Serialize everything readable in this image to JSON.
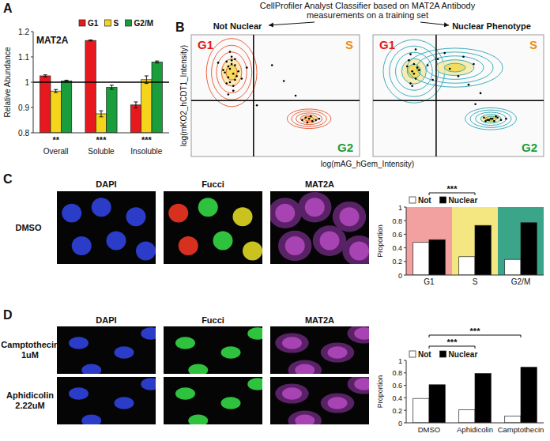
{
  "panel_labels": [
    "A",
    "B",
    "C",
    "D"
  ],
  "panel_b_title": [
    "CellProfiler Analyst Classifier based on MAT2A Antibody",
    "measurements on a training set"
  ],
  "images": {
    "columns": [
      "DAPI",
      "Fucci",
      "MAT2A"
    ],
    "rows_c": [
      "DMSO"
    ],
    "rows_d": [
      [
        "Camptothecin",
        "1uM"
      ],
      [
        "Aphidicolin",
        "2.22uM"
      ]
    ]
  },
  "chart_data": [
    {
      "type": "bar",
      "title": "MAT2A",
      "y_label": "Relative Abundance",
      "categories": [
        "Overall",
        "Soluble",
        "Insoluble"
      ],
      "significance": [
        "**",
        "***",
        "***"
      ],
      "series": [
        {
          "name": "G1",
          "color": "#e8191e",
          "values": [
            1.025,
            1.165,
            0.91
          ],
          "errors": [
            0.004,
            0.002,
            0.012
          ]
        },
        {
          "name": "S",
          "color": "#f5d51c",
          "values": [
            0.965,
            0.875,
            1.01
          ],
          "errors": [
            0.006,
            0.012,
            0.015
          ]
        },
        {
          "name": "G2/M",
          "color": "#1a9e3c",
          "values": [
            1.005,
            0.98,
            1.08
          ],
          "errors": [
            0.003,
            0.008,
            0.004
          ]
        }
      ],
      "ylim": [
        0.8,
        1.2
      ],
      "yticks": [
        0.8,
        0.9,
        1,
        1.1,
        1.2
      ],
      "reference_line": 1,
      "legend": "top"
    },
    {
      "type": "scatter",
      "title": "Not Nuclear",
      "x_label": "log(mAG_hGem_Intensity)",
      "y_label": "log(mKO2_hCDT1_Intensity)",
      "color": "#e8502a",
      "tick_labels": false,
      "xlim": [
        0,
        10
      ],
      "ylim": [
        0,
        10
      ],
      "thresholds": {
        "x": 3.7,
        "y": 4.6
      },
      "annotations": [
        "G1",
        "S",
        "G2"
      ],
      "contours": [
        {
          "cx": 2.4,
          "cy": 6.9,
          "rx": 1.5,
          "ry": 2.8
        },
        {
          "cx": 7.0,
          "cy": 3.1,
          "rx": 1.3,
          "ry": 0.8
        }
      ],
      "x": [
        2.1,
        2.3,
        2.5,
        2.2,
        2.6,
        2.4,
        2.0,
        2.8,
        2.3,
        2.5,
        2.7,
        2.2,
        2.4,
        2.6,
        1.9,
        2.3,
        2.5,
        2.1,
        3.0,
        2.4,
        2.6,
        2.2,
        3.3,
        4.8,
        5.5,
        6.2,
        6.6,
        6.8,
        7.0,
        7.2,
        7.4,
        7.1,
        6.9,
        7.6,
        3.9,
        1.6
      ],
      "values": [
        7.8,
        7.2,
        6.8,
        6.5,
        7.5,
        8.2,
        6.9,
        7.0,
        6.1,
        5.8,
        6.6,
        7.4,
        7.9,
        6.3,
        7.1,
        8.6,
        5.4,
        6.0,
        6.4,
        7.6,
        8.0,
        5.1,
        7.3,
        7.5,
        6.2,
        5.0,
        3.0,
        3.2,
        3.1,
        2.9,
        3.0,
        3.3,
        2.8,
        3.1,
        4.2,
        7.7
      ]
    },
    {
      "type": "scatter",
      "title": "Nuclear Phenotype",
      "color": "#2ba5b5",
      "tick_labels": false,
      "xlim": [
        0,
        10
      ],
      "ylim": [
        0,
        10
      ],
      "thresholds": {
        "x": 3.7,
        "y": 4.6
      },
      "annotations": [
        "G1",
        "S",
        "G2"
      ],
      "contours": [
        {
          "cx": 2.4,
          "cy": 7.0,
          "rx": 1.8,
          "ry": 2.6
        },
        {
          "cx": 6.9,
          "cy": 3.1,
          "rx": 1.5,
          "ry": 0.9
        },
        {
          "cx": 4.8,
          "cy": 7.3,
          "rx": 2.8,
          "ry": 1.6
        }
      ],
      "x": [
        2.2,
        2.4,
        2.3,
        2.5,
        2.1,
        2.6,
        2.3,
        2.4,
        2.2,
        2.7,
        2.5,
        3.2,
        3.8,
        4.5,
        5.0,
        5.6,
        4.2,
        5.9,
        6.3,
        3.5,
        6.0,
        6.5,
        6.7,
        6.9,
        7.1,
        7.3,
        6.8,
        7.0,
        7.2,
        7.5,
        6.6,
        7.8,
        2.0,
        5.3
      ],
      "values": [
        8.4,
        7.6,
        7.0,
        6.4,
        7.9,
        7.3,
        5.8,
        6.8,
        6.0,
        7.1,
        8.8,
        7.5,
        8.0,
        7.2,
        6.6,
        5.9,
        8.5,
        7.6,
        5.2,
        6.3,
        4.3,
        3.2,
        3.0,
        3.1,
        2.9,
        3.2,
        3.0,
        3.1,
        3.3,
        3.0,
        2.9,
        3.1,
        7.4,
        8.2
      ]
    },
    {
      "type": "bar",
      "y_label": "Proportion",
      "categories": [
        "G1",
        "S",
        "G2/M"
      ],
      "series": [
        {
          "name": "Not",
          "color": "#ffffff",
          "values": [
            0.48,
            0.27,
            0.23
          ]
        },
        {
          "name": "Nuclear",
          "color": "#000000",
          "values": [
            0.52,
            0.73,
            0.77
          ]
        }
      ],
      "ylim": [
        0,
        1
      ],
      "yticks": [
        0,
        0.2,
        0.4,
        0.6,
        0.8,
        1
      ],
      "brackets": [
        {
          "between": [
            "G1",
            "S"
          ],
          "label": "***"
        }
      ],
      "legend": "top"
    },
    {
      "type": "bar",
      "y_label": "Proportion",
      "categories": [
        "DMSO",
        "Aphidicolin",
        "Camptothecin"
      ],
      "series": [
        {
          "name": "Not",
          "color": "#ffffff",
          "values": [
            0.39,
            0.21,
            0.11
          ]
        },
        {
          "name": "Nuclear",
          "color": "#000000",
          "values": [
            0.61,
            0.79,
            0.89
          ]
        }
      ],
      "ylim": [
        0,
        1
      ],
      "yticks": [
        0,
        0.2,
        0.4,
        0.6,
        0.8,
        1
      ],
      "brackets": [
        {
          "between": [
            "DMSO",
            "Aphidicolin"
          ],
          "label": "***"
        },
        {
          "between": [
            "DMSO",
            "Camptothecin"
          ],
          "label": "***"
        }
      ],
      "legend": "top"
    }
  ]
}
